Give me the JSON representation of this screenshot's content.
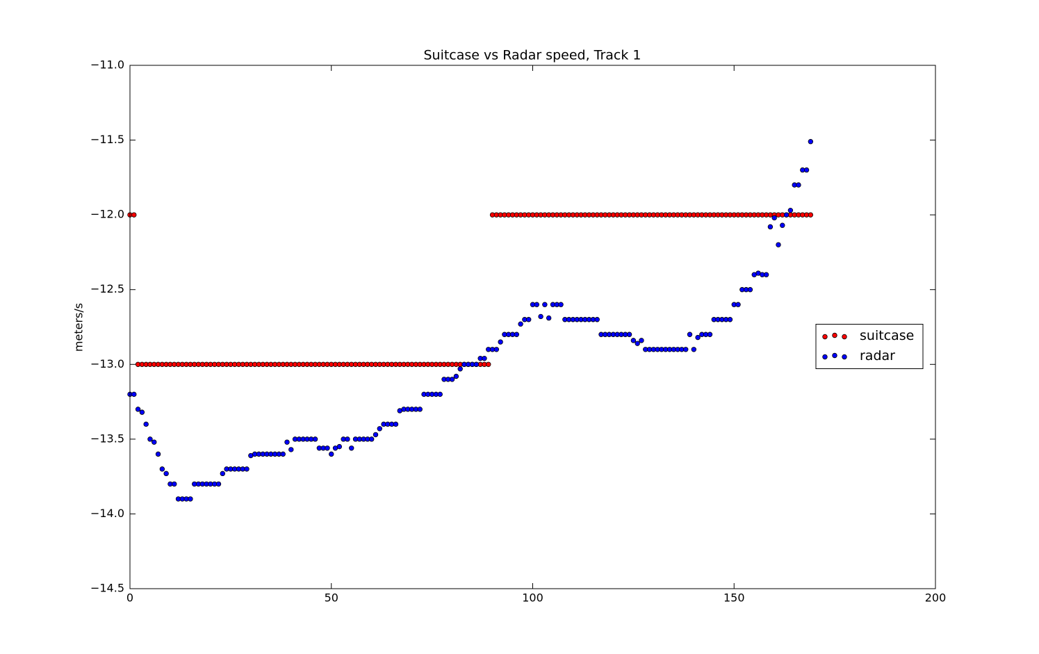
{
  "chart_data": {
    "type": "scatter",
    "title": "Suitcase vs Radar speed, Track 1",
    "y_label": "meters/s",
    "x": [
      0,
      1,
      2,
      3,
      4,
      5,
      6,
      7,
      8,
      9,
      10,
      11,
      12,
      13,
      14,
      15,
      16,
      17,
      18,
      19,
      20,
      21,
      22,
      23,
      24,
      25,
      26,
      27,
      28,
      29,
      30,
      31,
      32,
      33,
      34,
      35,
      36,
      37,
      38,
      39,
      40,
      41,
      42,
      43,
      44,
      45,
      46,
      47,
      48,
      49,
      50,
      51,
      52,
      53,
      54,
      55,
      56,
      57,
      58,
      59,
      60,
      61,
      62,
      63,
      64,
      65,
      66,
      67,
      68,
      69,
      70,
      71,
      72,
      73,
      74,
      75,
      76,
      77,
      78,
      79,
      80,
      81,
      82,
      83,
      84,
      85,
      86,
      87,
      88,
      89,
      90,
      91,
      92,
      93,
      94,
      95,
      96,
      97,
      98,
      99,
      100,
      101,
      102,
      103,
      104,
      105,
      106,
      107,
      108,
      109,
      110,
      111,
      112,
      113,
      114,
      115,
      116,
      117,
      118,
      119,
      120,
      121,
      122,
      123,
      124,
      125,
      126,
      127,
      128,
      129,
      130,
      131,
      132,
      133,
      134,
      135,
      136,
      137,
      138,
      139,
      140,
      141,
      142,
      143,
      144,
      145,
      146,
      147,
      148,
      149,
      150,
      151,
      152,
      153,
      154,
      155,
      156,
      157,
      158,
      159,
      160,
      161,
      162,
      163,
      164,
      165,
      166,
      167,
      168,
      169
    ],
    "series": [
      {
        "name": "suitcase",
        "color": "#ff0000",
        "values": [
          -12,
          -12,
          -13,
          -13,
          -13,
          -13,
          -13,
          -13,
          -13,
          -13,
          -13,
          -13,
          -13,
          -13,
          -13,
          -13,
          -13,
          -13,
          -13,
          -13,
          -13,
          -13,
          -13,
          -13,
          -13,
          -13,
          -13,
          -13,
          -13,
          -13,
          -13,
          -13,
          -13,
          -13,
          -13,
          -13,
          -13,
          -13,
          -13,
          -13,
          -13,
          -13,
          -13,
          -13,
          -13,
          -13,
          -13,
          -13,
          -13,
          -13,
          -13,
          -13,
          -13,
          -13,
          -13,
          -13,
          -13,
          -13,
          -13,
          -13,
          -13,
          -13,
          -13,
          -13,
          -13,
          -13,
          -13,
          -13,
          -13,
          -13,
          -13,
          -13,
          -13,
          -13,
          -13,
          -13,
          -13,
          -13,
          -13,
          -13,
          -13,
          -13,
          -13,
          -13,
          -13,
          -13,
          -13,
          -13,
          -13,
          -13,
          -12,
          -12,
          -12,
          -12,
          -12,
          -12,
          -12,
          -12,
          -12,
          -12,
          -12,
          -12,
          -12,
          -12,
          -12,
          -12,
          -12,
          -12,
          -12,
          -12,
          -12,
          -12,
          -12,
          -12,
          -12,
          -12,
          -12,
          -12,
          -12,
          -12,
          -12,
          -12,
          -12,
          -12,
          -12,
          -12,
          -12,
          -12,
          -12,
          -12,
          -12,
          -12,
          -12,
          -12,
          -12,
          -12,
          -12,
          -12,
          -12,
          -12,
          -12,
          -12,
          -12,
          -12,
          -12,
          -12,
          -12,
          -12,
          -12,
          -12,
          -12,
          -12,
          -12,
          -12,
          -12,
          -12,
          -12,
          -12,
          -12,
          -12,
          -12,
          -12,
          -12,
          -12,
          -12,
          -12,
          -12,
          -12,
          -12,
          -12
        ]
      },
      {
        "name": "radar",
        "color": "#0000ff",
        "values": [
          -13.2,
          -13.2,
          -13.3,
          -13.32,
          -13.4,
          -13.5,
          -13.52,
          -13.6,
          -13.7,
          -13.73,
          -13.8,
          -13.8,
          -13.9,
          -13.9,
          -13.9,
          -13.9,
          -13.8,
          -13.8,
          -13.8,
          -13.8,
          -13.8,
          -13.8,
          -13.8,
          -13.73,
          -13.7,
          -13.7,
          -13.7,
          -13.7,
          -13.7,
          -13.7,
          -13.61,
          -13.6,
          -13.6,
          -13.6,
          -13.6,
          -13.6,
          -13.6,
          -13.6,
          -13.6,
          -13.52,
          -13.57,
          -13.5,
          -13.5,
          -13.5,
          -13.5,
          -13.5,
          -13.5,
          -13.56,
          -13.56,
          -13.56,
          -13.6,
          -13.56,
          -13.55,
          -13.5,
          -13.5,
          -13.56,
          -13.5,
          -13.5,
          -13.5,
          -13.5,
          -13.5,
          -13.47,
          -13.43,
          -13.4,
          -13.4,
          -13.4,
          -13.4,
          -13.31,
          -13.3,
          -13.3,
          -13.3,
          -13.3,
          -13.3,
          -13.2,
          -13.2,
          -13.2,
          -13.2,
          -13.2,
          -13.1,
          -13.1,
          -13.1,
          -13.08,
          -13.03,
          -13.0,
          -13.0,
          -13.0,
          -13.0,
          -12.96,
          -12.96,
          -12.9,
          -12.9,
          -12.9,
          -12.85,
          -12.8,
          -12.8,
          -12.8,
          -12.8,
          -12.73,
          -12.7,
          -12.7,
          -12.6,
          -12.6,
          -12.68,
          -12.6,
          -12.69,
          -12.6,
          -12.6,
          -12.6,
          -12.7,
          -12.7,
          -12.7,
          -12.7,
          -12.7,
          -12.7,
          -12.7,
          -12.7,
          -12.7,
          -12.8,
          -12.8,
          -12.8,
          -12.8,
          -12.8,
          -12.8,
          -12.8,
          -12.8,
          -12.84,
          -12.86,
          -12.84,
          -12.9,
          -12.9,
          -12.9,
          -12.9,
          -12.9,
          -12.9,
          -12.9,
          -12.9,
          -12.9,
          -12.9,
          -12.9,
          -12.8,
          -12.9,
          -12.82,
          -12.8,
          -12.8,
          -12.8,
          -12.7,
          -12.7,
          -12.7,
          -12.7,
          -12.7,
          -12.6,
          -12.6,
          -12.5,
          -12.5,
          -12.5,
          -12.4,
          -12.39,
          -12.4,
          -12.4,
          -12.08,
          -12.02,
          -12.2,
          -12.07,
          -12.0,
          -11.97,
          -11.8,
          -11.8,
          -11.7,
          -11.7,
          -11.51
        ]
      }
    ],
    "xlim": [
      0,
      200
    ],
    "xticks": [
      0,
      50,
      100,
      150,
      200
    ],
    "ylim": [
      -14.5,
      -11
    ],
    "yticks": [
      {
        "value": -14.5,
        "label": "−14.5"
      },
      {
        "value": -14,
        "label": "−14.0"
      },
      {
        "value": -13.5,
        "label": "−13.5"
      },
      {
        "value": -13,
        "label": "−13.0"
      },
      {
        "value": -12.5,
        "label": "−12.5"
      },
      {
        "value": -12,
        "label": "−12.0"
      },
      {
        "value": -11.5,
        "label": "−11.5"
      },
      {
        "value": -11,
        "label": "−11.0"
      }
    ],
    "legend": "center right",
    "grid": false
  }
}
